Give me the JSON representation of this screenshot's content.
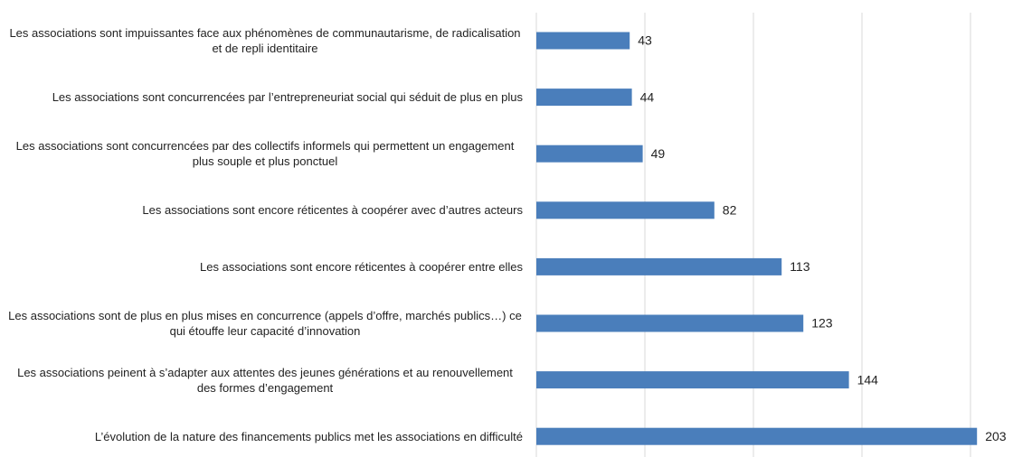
{
  "chart_data": {
    "type": "bar",
    "orientation": "horizontal",
    "categories": [
      "Les associations sont impuissantes face aux phénomènes de communautarisme, de radicalisation et de repli identitaire",
      "Les associations sont concurrencées par l’entrepreneuriat social qui séduit de plus en plus",
      "Les associations sont concurrencées par des collectifs informels qui permettent un engagement plus souple et plus ponctuel",
      "Les associations sont encore réticentes à coopérer avec d’autres acteurs",
      "Les associations sont encore réticentes à coopérer entre elles",
      "Les associations sont de plus en plus mises en concurrence (appels d’offre, marchés publics…) ce qui étouffe leur capacité d’innovation",
      "Les associations peinent à s’adapter aux attentes des jeunes générations et au renouvellement des formes d’engagement",
      "L’évolution de la nature des financements publics met les associations en difficulté"
    ],
    "values": [
      43,
      44,
      49,
      82,
      113,
      123,
      144,
      203
    ],
    "color": "#4a7ebb",
    "xlim": [
      0,
      210
    ],
    "xticks": [
      0,
      50,
      100,
      150,
      200
    ],
    "grid": true
  }
}
